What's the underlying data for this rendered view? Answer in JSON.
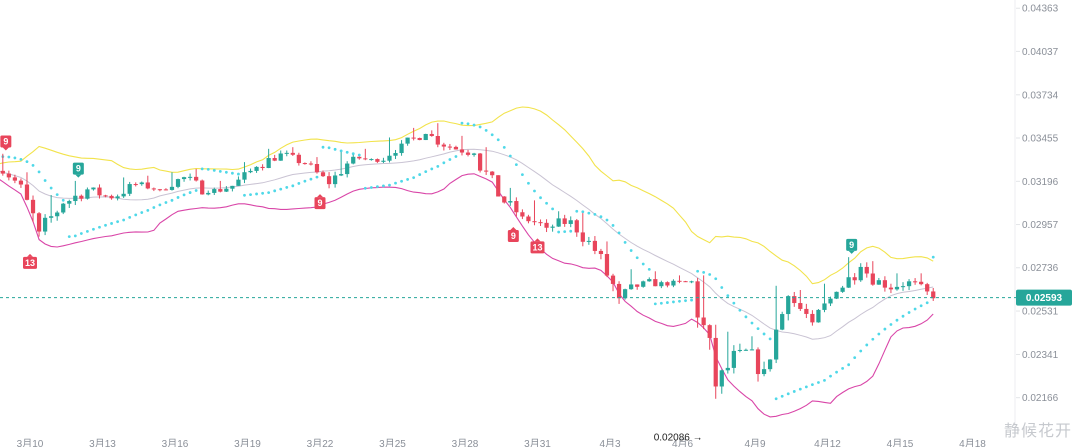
{
  "chart_data": {
    "type": "candlestick",
    "price_axis": {
      "ticks": [
        0.04363,
        0.04037,
        0.03734,
        0.03455,
        0.03196,
        0.02957,
        0.02736,
        0.02531,
        0.02341,
        0.02166
      ],
      "scale": "log",
      "range": [
        0.0204,
        0.0442
      ]
    },
    "x_axis": {
      "ticks": [
        "3月10",
        "3月13",
        "3月16",
        "3月19",
        "3月22",
        "3月25",
        "3月28",
        "3月31",
        "4月3",
        "4月6",
        "4月9",
        "4月12",
        "4月15",
        "4月18"
      ],
      "partial_ticks": [
        "3月10",
        "4月18"
      ]
    },
    "current_price": {
      "value": 0.02593,
      "label": "0.02593",
      "color": "#26a69a"
    },
    "low_marker": {
      "value": 0.02086,
      "label": "0.02086 →"
    },
    "td_markers": [
      {
        "label": "9",
        "color": "#e8455b",
        "position": "above",
        "at": "3月9"
      },
      {
        "label": "13",
        "color": "#e8455b",
        "position": "below",
        "at": "3月10"
      },
      {
        "label": "9",
        "color": "#26a69a",
        "position": "above",
        "at": "3月12"
      },
      {
        "label": "9",
        "color": "#e8455b",
        "position": "below",
        "at": "3月22"
      },
      {
        "label": "9",
        "color": "#e8455b",
        "position": "below",
        "at": "3月30"
      },
      {
        "label": "13",
        "color": "#e8455b",
        "position": "below",
        "at": "3月31"
      },
      {
        "label": "9",
        "color": "#26a69a",
        "position": "above",
        "at": "4月13"
      }
    ],
    "colors": {
      "up": "#26a69a",
      "down": "#e8455b",
      "bb_upper": "#f2e34c",
      "bb_middle": "#c9c3d3",
      "bb_lower": "#d946a8",
      "sar": "#4fd8e8"
    },
    "candles": [
      {
        "date": "3月9",
        "o": 0.0332,
        "h": 0.0336,
        "l": 0.0317,
        "c": 0.032
      },
      {
        "date": "3月10",
        "o": 0.032,
        "h": 0.0325,
        "l": 0.0282,
        "c": 0.0292
      },
      {
        "date": "3月11",
        "o": 0.0292,
        "h": 0.0312,
        "l": 0.0288,
        "c": 0.0307
      },
      {
        "date": "3月12",
        "o": 0.0307,
        "h": 0.032,
        "l": 0.0299,
        "c": 0.0315
      },
      {
        "date": "3月13",
        "o": 0.0315,
        "h": 0.0318,
        "l": 0.0302,
        "c": 0.031
      },
      {
        "date": "3月14",
        "o": 0.031,
        "h": 0.0322,
        "l": 0.0306,
        "c": 0.0318
      },
      {
        "date": "3月15",
        "o": 0.0318,
        "h": 0.0323,
        "l": 0.0312,
        "c": 0.0315
      },
      {
        "date": "3月16",
        "o": 0.0315,
        "h": 0.0325,
        "l": 0.0311,
        "c": 0.0322
      },
      {
        "date": "3月17",
        "o": 0.0322,
        "h": 0.0327,
        "l": 0.0309,
        "c": 0.0313
      },
      {
        "date": "3月18",
        "o": 0.0313,
        "h": 0.032,
        "l": 0.0306,
        "c": 0.0317
      },
      {
        "date": "3月19",
        "o": 0.0317,
        "h": 0.0331,
        "l": 0.0314,
        "c": 0.0328
      },
      {
        "date": "3月20",
        "o": 0.0328,
        "h": 0.0339,
        "l": 0.0322,
        "c": 0.0336
      },
      {
        "date": "3月21",
        "o": 0.0336,
        "h": 0.034,
        "l": 0.0326,
        "c": 0.033
      },
      {
        "date": "3月22",
        "o": 0.033,
        "h": 0.0334,
        "l": 0.0314,
        "c": 0.0318
      },
      {
        "date": "3月23",
        "o": 0.0318,
        "h": 0.0337,
        "l": 0.0316,
        "c": 0.0334
      },
      {
        "date": "3月24",
        "o": 0.0334,
        "h": 0.0339,
        "l": 0.0329,
        "c": 0.0331
      },
      {
        "date": "3月25",
        "o": 0.0331,
        "h": 0.0346,
        "l": 0.0326,
        "c": 0.0342
      },
      {
        "date": "3月26",
        "o": 0.0342,
        "h": 0.0352,
        "l": 0.0338,
        "c": 0.0348
      },
      {
        "date": "3月27",
        "o": 0.0348,
        "h": 0.0355,
        "l": 0.0335,
        "c": 0.034
      },
      {
        "date": "3月28",
        "o": 0.034,
        "h": 0.0347,
        "l": 0.0332,
        "c": 0.0336
      },
      {
        "date": "3月29",
        "o": 0.0336,
        "h": 0.034,
        "l": 0.0306,
        "c": 0.0311
      },
      {
        "date": "3月30",
        "o": 0.0311,
        "h": 0.0316,
        "l": 0.0296,
        "c": 0.03
      },
      {
        "date": "3月31",
        "o": 0.03,
        "h": 0.0309,
        "l": 0.029,
        "c": 0.0294
      },
      {
        "date": "4月1",
        "o": 0.0294,
        "h": 0.0303,
        "l": 0.0285,
        "c": 0.0298
      },
      {
        "date": "4月2",
        "o": 0.0298,
        "h": 0.0302,
        "l": 0.0278,
        "c": 0.0282
      },
      {
        "date": "4月3",
        "o": 0.0282,
        "h": 0.0287,
        "l": 0.0255,
        "c": 0.0259
      },
      {
        "date": "4月4",
        "o": 0.0259,
        "h": 0.0273,
        "l": 0.0256,
        "c": 0.0267
      },
      {
        "date": "4月5",
        "o": 0.0267,
        "h": 0.0272,
        "l": 0.0262,
        "c": 0.0265
      },
      {
        "date": "4月6",
        "o": 0.0265,
        "h": 0.027,
        "l": 0.0259,
        "c": 0.0267
      },
      {
        "date": "4月7",
        "o": 0.0267,
        "h": 0.027,
        "l": 0.0209,
        "c": 0.0221
      },
      {
        "date": "4月8",
        "o": 0.0221,
        "h": 0.0244,
        "l": 0.0218,
        "c": 0.0236
      },
      {
        "date": "4月9",
        "o": 0.0236,
        "h": 0.0242,
        "l": 0.0215,
        "c": 0.0228
      },
      {
        "date": "4月10",
        "o": 0.0228,
        "h": 0.0265,
        "l": 0.0227,
        "c": 0.026
      },
      {
        "date": "4月11",
        "o": 0.026,
        "h": 0.0263,
        "l": 0.0243,
        "c": 0.0248
      },
      {
        "date": "4月12",
        "o": 0.0248,
        "h": 0.0266,
        "l": 0.0246,
        "c": 0.0262
      },
      {
        "date": "4月13",
        "o": 0.0262,
        "h": 0.0279,
        "l": 0.0259,
        "c": 0.0274
      },
      {
        "date": "4月14",
        "o": 0.0274,
        "h": 0.0277,
        "l": 0.0256,
        "c": 0.0264
      },
      {
        "date": "4月15",
        "o": 0.0264,
        "h": 0.0271,
        "l": 0.0253,
        "c": 0.0267
      },
      {
        "date": "4月16",
        "o": 0.0267,
        "h": 0.0271,
        "l": 0.0255,
        "c": 0.0259
      }
    ]
  },
  "watermark": {
    "text": "静候花开"
  }
}
